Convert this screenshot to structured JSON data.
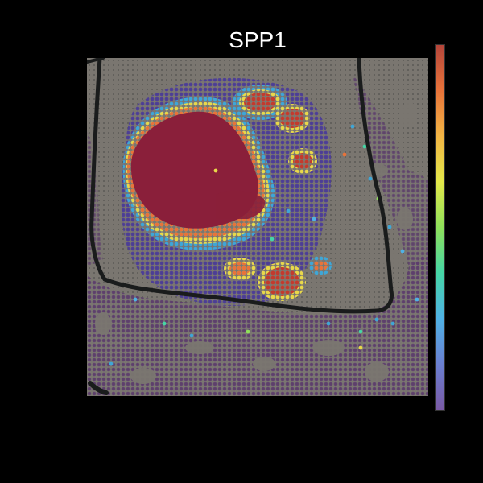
{
  "title": "SPP1",
  "colorbar": {
    "stops": [
      "#b5453a",
      "#e8733a",
      "#f2b544",
      "#e3e84a",
      "#8fe05a",
      "#45d6a6",
      "#4fb2e6",
      "#6a7fd1",
      "#7a5aa6"
    ]
  },
  "colors": {
    "background": "#000000",
    "tissue_section": "#7a7670",
    "frame_line": "#1a1c1c",
    "grid_dot": "#4a4a48",
    "low_expression": "#5c3a6e",
    "mid_low_expression": "#4a3a9a",
    "mid_expression": "#3fa6d6",
    "high_expression": "#e8d84a",
    "highest_expression": "#c23a2e",
    "necrotic_core": "#8a1f3a"
  }
}
